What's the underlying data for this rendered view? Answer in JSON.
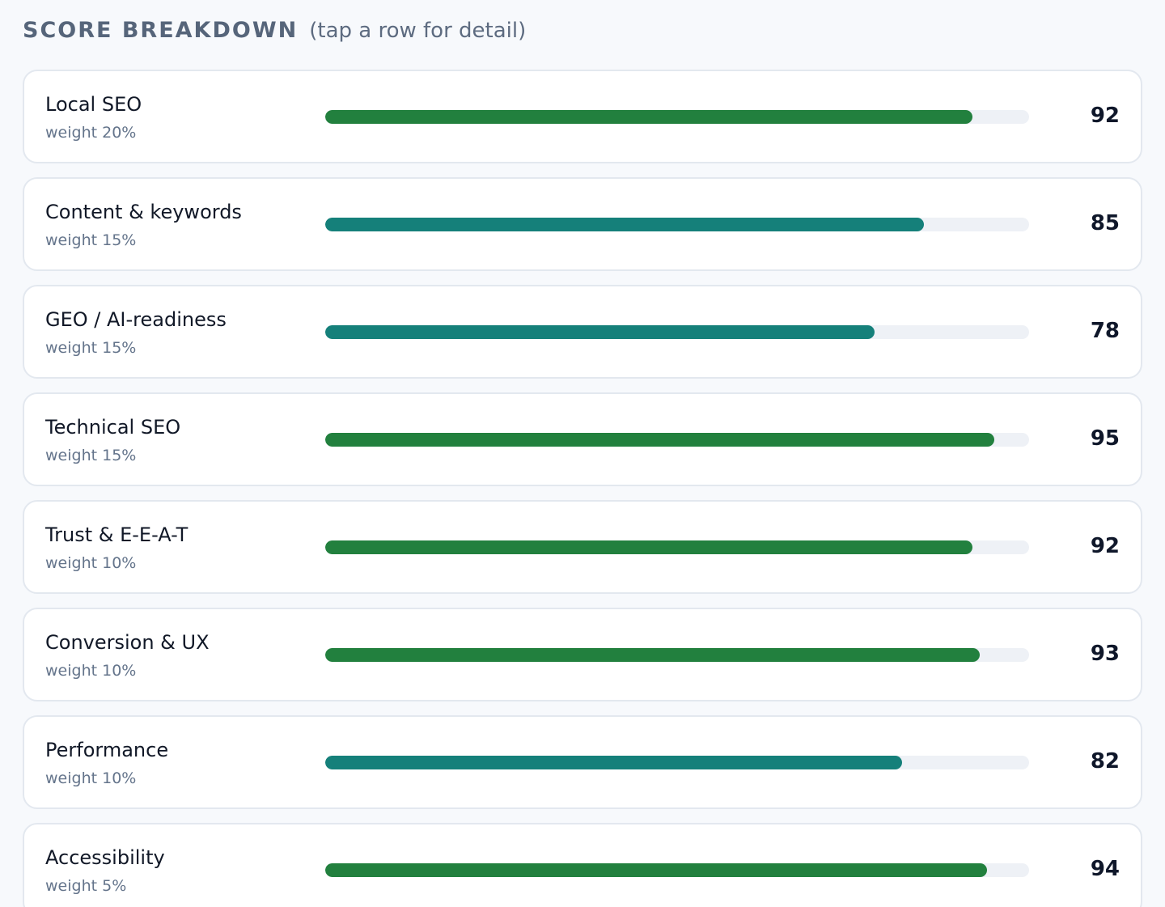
{
  "header": {
    "title": "SCORE BREAKDOWN",
    "hint": "(tap a row for detail)"
  },
  "colors": {
    "green": "#22803e",
    "teal": "#15807a",
    "track": "#eef1f6"
  },
  "rows": [
    {
      "label": "Local SEO",
      "weight": "weight 20%",
      "score": "92",
      "value": 92,
      "color": "green"
    },
    {
      "label": "Content & keywords",
      "weight": "weight 15%",
      "score": "85",
      "value": 85,
      "color": "teal"
    },
    {
      "label": "GEO / AI-readiness",
      "weight": "weight 15%",
      "score": "78",
      "value": 78,
      "color": "teal"
    },
    {
      "label": "Technical SEO",
      "weight": "weight 15%",
      "score": "95",
      "value": 95,
      "color": "green"
    },
    {
      "label": "Trust & E-E-A-T",
      "weight": "weight 10%",
      "score": "92",
      "value": 92,
      "color": "green"
    },
    {
      "label": "Conversion & UX",
      "weight": "weight 10%",
      "score": "93",
      "value": 93,
      "color": "green"
    },
    {
      "label": "Performance",
      "weight": "weight 10%",
      "score": "82",
      "value": 82,
      "color": "teal"
    },
    {
      "label": "Accessibility",
      "weight": "weight 5%",
      "score": "94",
      "value": 94,
      "color": "green"
    }
  ]
}
